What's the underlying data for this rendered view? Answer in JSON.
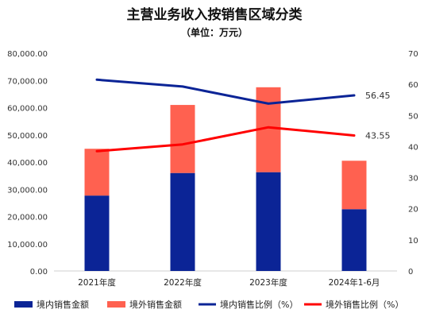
{
  "chart_data": {
    "type": "bar",
    "title": "主营业务收入按销售区域分类",
    "subtitle": "（单位：万元）",
    "categories": [
      "2021年度",
      "2022年度",
      "2023年度",
      "2024年1-6月"
    ],
    "stacked": true,
    "left_axis": {
      "min": 0,
      "max": 80000,
      "ticks": [
        "0.00",
        "10,000.00",
        "20,000.00",
        "30,000.00",
        "40,000.00",
        "50,000.00",
        "60,000.00",
        "70,000.00",
        "80,000.00"
      ]
    },
    "right_axis": {
      "min": 0,
      "max": 70,
      "ticks": [
        "0",
        "10",
        "20",
        "30",
        "40",
        "50",
        "60",
        "70"
      ]
    },
    "series": [
      {
        "name": "境内销售金额",
        "type": "bar",
        "axis": "left",
        "color": "#0B2496",
        "values": [
          27700,
          36000,
          36300,
          22700
        ]
      },
      {
        "name": "境外销售金额",
        "type": "bar",
        "axis": "left",
        "color": "#FF6150",
        "values": [
          17200,
          25000,
          31200,
          17800
        ]
      },
      {
        "name": "境内销售比例（%）",
        "type": "line",
        "axis": "right",
        "color": "#0B2496",
        "values": [
          61.5,
          59.3,
          53.8,
          56.45
        ]
      },
      {
        "name": "境外销售比例（%）",
        "type": "line",
        "axis": "right",
        "color": "#FF0000",
        "values": [
          38.5,
          40.7,
          46.2,
          43.55
        ]
      }
    ],
    "data_labels": [
      "56.45",
      "43.55"
    ],
    "grid": false,
    "legend_position": "bottom"
  }
}
